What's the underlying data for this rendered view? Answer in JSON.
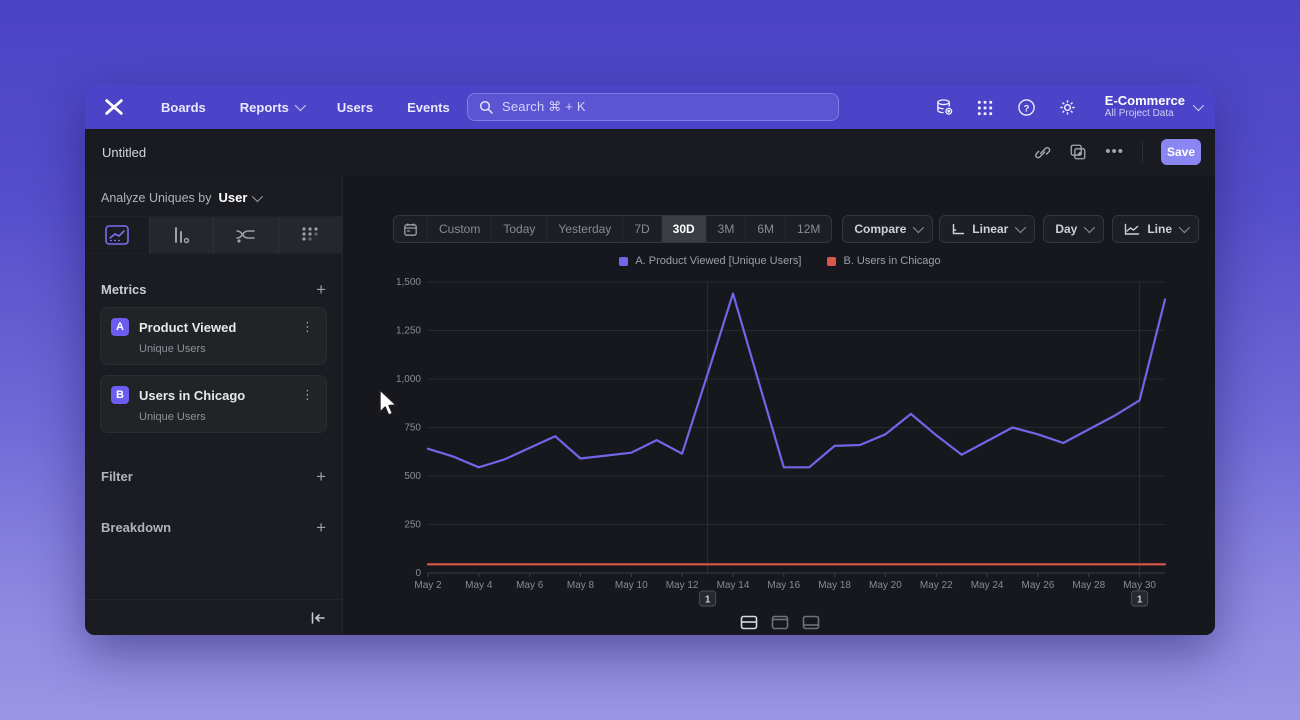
{
  "nav": {
    "logo_name": "mixpanel-logo",
    "items": [
      {
        "label": "Boards",
        "chevron": false
      },
      {
        "label": "Reports",
        "chevron": true
      },
      {
        "label": "Users",
        "chevron": false
      },
      {
        "label": "Events",
        "chevron": false
      }
    ],
    "search": {
      "placeholder": "Search  ⌘ + K"
    },
    "icons": [
      "data-management-icon",
      "apps-grid-icon",
      "help-icon",
      "settings-gear-icon"
    ],
    "project": {
      "name": "E-Commerce",
      "subtitle": "All Project Data"
    }
  },
  "header": {
    "title": "Untitled",
    "icons": [
      "link-icon",
      "duplicate-icon",
      "more-ellipsis"
    ],
    "save_label": "Save"
  },
  "sidebar": {
    "analyze_prefix": "Analyze Uniques by",
    "analyze_value": "User",
    "tabs": [
      "insights-line-tab",
      "funnels-bars-tab",
      "flows-tab",
      "retention-dots-tab"
    ],
    "selected_tab": 0,
    "metrics_label": "Metrics",
    "filter_label": "Filter",
    "breakdown_label": "Breakdown",
    "metrics": [
      {
        "letter": "A",
        "name": "Product Viewed",
        "type": "Unique Users"
      },
      {
        "letter": "B",
        "name": "Users in Chicago",
        "type": "Unique Users"
      }
    ]
  },
  "toolbar": {
    "ranges": [
      "Custom",
      "Today",
      "Yesterday",
      "7D",
      "30D",
      "3M",
      "6M",
      "12M"
    ],
    "selected_range": "30D",
    "compare_label": "Compare",
    "scale_label": "Linear",
    "interval_label": "Day",
    "chart_type_label": "Line"
  },
  "chart_data": {
    "type": "line",
    "title": "",
    "x": [
      "May 2",
      "May 3",
      "May 4",
      "May 5",
      "May 6",
      "May 7",
      "May 8",
      "May 9",
      "May 10",
      "May 11",
      "May 12",
      "May 13",
      "May 14",
      "May 15",
      "May 16",
      "May 17",
      "May 18",
      "May 19",
      "May 20",
      "May 21",
      "May 22",
      "May 23",
      "May 24",
      "May 25",
      "May 26",
      "May 27",
      "May 28",
      "May 29",
      "May 30",
      "May 31"
    ],
    "x_ticks": [
      {
        "day_index": 0,
        "label": "May 2"
      },
      {
        "day_index": 2,
        "label": "May 4"
      },
      {
        "day_index": 4,
        "label": "May 6"
      },
      {
        "day_index": 6,
        "label": "May 8"
      },
      {
        "day_index": 8,
        "label": "May 10"
      },
      {
        "day_index": 10,
        "label": "May 12"
      },
      {
        "day_index": 12,
        "label": "May 14"
      },
      {
        "day_index": 14,
        "label": "May 16"
      },
      {
        "day_index": 16,
        "label": "May 18"
      },
      {
        "day_index": 18,
        "label": "May 20"
      },
      {
        "day_index": 20,
        "label": "May 22"
      },
      {
        "day_index": 22,
        "label": "May 24"
      },
      {
        "day_index": 24,
        "label": "May 26"
      },
      {
        "day_index": 26,
        "label": "May 28"
      },
      {
        "day_index": 28,
        "label": "May 30"
      }
    ],
    "yticks": [
      {
        "value": 0,
        "label": "0"
      },
      {
        "value": 250,
        "label": "250"
      },
      {
        "value": 500,
        "label": "500"
      },
      {
        "value": 750,
        "label": "750"
      },
      {
        "value": 1000,
        "label": "1,000"
      },
      {
        "value": 1250,
        "label": "1,250"
      },
      {
        "value": 1500,
        "label": "1,500"
      }
    ],
    "ylim": [
      0,
      1500
    ],
    "series": [
      {
        "name": "A. Product Viewed [Unique Users]",
        "color": "#7166e8",
        "values": [
          640,
          600,
          545,
          585,
          645,
          705,
          590,
          605,
          620,
          685,
          615,
          1025,
          1440,
          990,
          545,
          545,
          655,
          660,
          715,
          820,
          710,
          610,
          680,
          750,
          715,
          670,
          740,
          810,
          890,
          1410
        ]
      },
      {
        "name": "B. Users in Chicago",
        "color": "#d9584a",
        "values": [
          45,
          45,
          45,
          45,
          45,
          45,
          45,
          45,
          45,
          45,
          45,
          45,
          45,
          45,
          45,
          45,
          45,
          45,
          45,
          45,
          45,
          45,
          45,
          45,
          45,
          45,
          45,
          45,
          45,
          45
        ]
      }
    ],
    "annotations": [
      {
        "label": "1",
        "day_index": 11
      },
      {
        "label": "1",
        "day_index": 28
      }
    ],
    "legend_position": "top-center",
    "grid": true
  },
  "footer": {
    "layout_icons": [
      "layout-split-icon",
      "layout-top-icon",
      "layout-bottom-icon"
    ]
  },
  "colors": {
    "nav_accent": "#4b44c9",
    "save_button": "#8a87f3",
    "series_a": "#7166e8",
    "series_b": "#d9584a",
    "selected_tab_accent": "#7d6df2"
  }
}
